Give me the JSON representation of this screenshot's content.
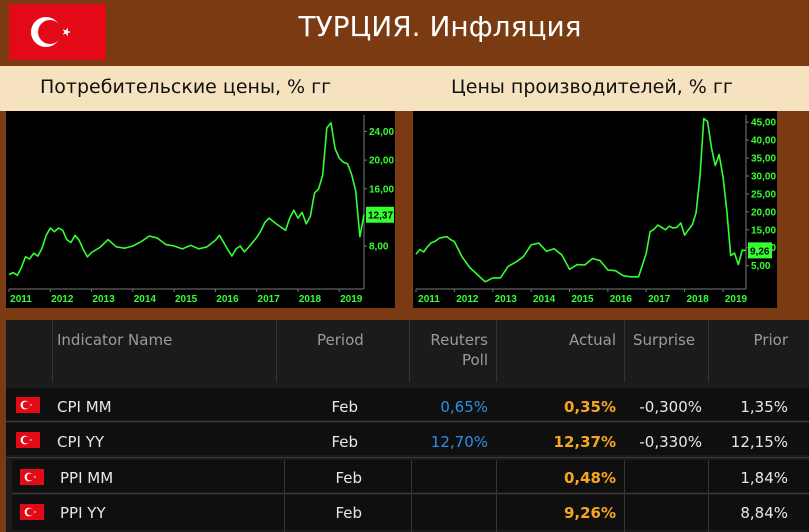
{
  "header": {
    "title": "ТУРЦИЯ. Инфляция"
  },
  "colors": {
    "frame": "#7a3a12",
    "band": "#f7e2c0",
    "line": "#33ff33",
    "poll": "#2f8fe6",
    "actual": "#f5a623"
  },
  "chart_data": [
    {
      "type": "line",
      "title": "Потребительские цены, % гг",
      "x_tick_labels": [
        "2011",
        "2012",
        "2013",
        "2014",
        "2015",
        "2016",
        "2017",
        "2018",
        "2019"
      ],
      "y_tick_labels": [
        "24,00",
        "20,00",
        "16,00",
        "12,37",
        "8,00"
      ],
      "y_ticks": [
        8,
        16,
        20,
        24
      ],
      "ylim": [
        2,
        26.3
      ],
      "xlim": [
        2011.0,
        2019.6
      ],
      "last_value_label": "12,37",
      "series": [
        {
          "x": [
            2011.0,
            2011.1,
            2011.2,
            2011.3,
            2011.4,
            2011.5,
            2011.6,
            2011.7,
            2011.8,
            2011.9,
            2012.0,
            2012.1,
            2012.2,
            2012.3,
            2012.4,
            2012.5,
            2012.6,
            2012.7,
            2012.8,
            2012.9,
            2013.0,
            2013.2,
            2013.4,
            2013.6,
            2013.8,
            2014.0,
            2014.2,
            2014.4,
            2014.6,
            2014.8,
            2015.0,
            2015.2,
            2015.4,
            2015.6,
            2015.8,
            2016.0,
            2016.1,
            2016.2,
            2016.3,
            2016.4,
            2016.5,
            2016.6,
            2016.7,
            2016.8,
            2016.9,
            2017.0,
            2017.1,
            2017.2,
            2017.3,
            2017.5,
            2017.7,
            2017.8,
            2017.9,
            2018.0,
            2018.1,
            2018.2,
            2018.3,
            2018.4,
            2018.5,
            2018.6,
            2018.7,
            2018.8,
            2018.9,
            2019.0,
            2019.1,
            2019.2,
            2019.3,
            2019.4,
            2019.5,
            2019.6
          ],
          "y": [
            4.0,
            4.3,
            3.9,
            5.0,
            6.5,
            6.2,
            7.0,
            6.6,
            7.7,
            9.5,
            10.5,
            10.0,
            10.5,
            10.2,
            8.9,
            8.5,
            9.5,
            8.8,
            7.5,
            6.5,
            7.1,
            7.8,
            8.9,
            7.9,
            7.7,
            8.0,
            8.6,
            9.4,
            9.1,
            8.2,
            8.0,
            7.6,
            8.1,
            7.6,
            7.9,
            8.8,
            9.5,
            8.5,
            7.5,
            6.6,
            7.6,
            8.0,
            7.2,
            7.8,
            8.5,
            9.2,
            10.1,
            11.3,
            11.9,
            11.0,
            10.2,
            11.9,
            13.0,
            11.9,
            12.7,
            11.1,
            12.1,
            15.4,
            16.0,
            17.9,
            24.5,
            25.2,
            21.6,
            20.3,
            19.7,
            19.5,
            18.0,
            15.7,
            9.3,
            12.4
          ]
        }
      ]
    },
    {
      "type": "line",
      "title": "Цены производителей, % гг",
      "x_tick_labels": [
        "2011",
        "2012",
        "2013",
        "2014",
        "2015",
        "2016",
        "2017",
        "2018",
        "2019"
      ],
      "y_tick_labels": [
        "45,00",
        "40,00",
        "35,00",
        "30,00",
        "25,00",
        "20,00",
        "15,00",
        "10,00",
        "9,26",
        "5,00"
      ],
      "y_ticks": [
        5,
        10,
        15,
        20,
        25,
        30,
        35,
        40,
        45
      ],
      "ylim": [
        -1.5,
        47
      ],
      "xlim": [
        2011.0,
        2019.6
      ],
      "last_value_label": "9,26",
      "series": [
        {
          "x": [
            2011.0,
            2011.1,
            2011.2,
            2011.3,
            2011.4,
            2011.5,
            2011.6,
            2011.7,
            2011.8,
            2011.9,
            2012.0,
            2012.2,
            2012.4,
            2012.6,
            2012.8,
            2013.0,
            2013.2,
            2013.4,
            2013.6,
            2013.8,
            2014.0,
            2014.2,
            2014.4,
            2014.6,
            2014.8,
            2015.0,
            2015.2,
            2015.4,
            2015.6,
            2015.8,
            2016.0,
            2016.2,
            2016.4,
            2016.6,
            2016.8,
            2017.0,
            2017.1,
            2017.2,
            2017.3,
            2017.4,
            2017.5,
            2017.6,
            2017.7,
            2017.8,
            2017.9,
            2018.0,
            2018.1,
            2018.2,
            2018.3,
            2018.4,
            2018.5,
            2018.6,
            2018.7,
            2018.8,
            2018.9,
            2019.0,
            2019.1,
            2019.2,
            2019.3,
            2019.4,
            2019.5,
            2019.6
          ],
          "y": [
            8.2,
            9.5,
            8.8,
            10.3,
            11.4,
            11.8,
            12.6,
            12.9,
            13.1,
            12.3,
            11.7,
            7.5,
            4.5,
            2.5,
            0.5,
            1.6,
            1.6,
            4.8,
            6.0,
            7.5,
            10.8,
            11.3,
            9.0,
            9.7,
            8.0,
            4.0,
            5.3,
            5.2,
            7.0,
            6.4,
            3.8,
            3.6,
            2.2,
            1.9,
            1.9,
            8.4,
            14.5,
            15.1,
            16.3,
            15.7,
            15.0,
            16.0,
            15.5,
            15.7,
            16.9,
            13.5,
            15.0,
            16.4,
            19.8,
            30.0,
            46.0,
            45.2,
            37.8,
            32.9,
            36.0,
            29.8,
            20.4,
            7.8,
            8.5,
            5.3,
            9.3,
            9.3
          ]
        }
      ]
    }
  ],
  "table": {
    "headers": {
      "indicator": "Indicator Name",
      "period": "Period",
      "poll_1": "Reuters",
      "poll_2": "Poll",
      "actual": "Actual",
      "surprise": "Surprise",
      "prior": "Prior"
    },
    "rows": [
      {
        "name": "CPI MM",
        "period": "Feb",
        "poll": "0,65%",
        "actual": "0,35%",
        "surprise": "-0,300%",
        "prior": "1,35%"
      },
      {
        "name": "CPI YY",
        "period": "Feb",
        "poll": "12,70%",
        "actual": "12,37%",
        "surprise": "-0,330%",
        "prior": "12,15%"
      },
      {
        "name": "PPI MM",
        "period": "Feb",
        "poll": "",
        "actual": "0,48%",
        "surprise": "",
        "prior": "1,84%"
      },
      {
        "name": "PPI YY",
        "period": "Feb",
        "poll": "",
        "actual": "9,26%",
        "surprise": "",
        "prior": "8,84%"
      }
    ]
  }
}
